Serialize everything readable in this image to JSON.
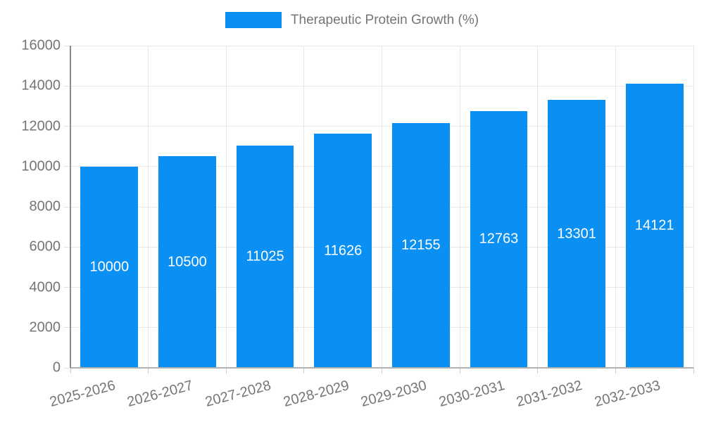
{
  "chart_data": {
    "type": "bar",
    "title": "Therapeutic Protein Growth (%)",
    "categories": [
      "2025-2026",
      "2026-2027",
      "2027-2028",
      "2028-2029",
      "2029-2030",
      "2030-2031",
      "2031-2032",
      "2032-2033"
    ],
    "values": [
      10000,
      10500,
      11025,
      11626,
      12155,
      12763,
      13301,
      14121
    ],
    "data_labels": [
      "10000",
      "10500",
      "11025",
      "11626",
      "12155",
      "12763",
      "13301",
      "14121"
    ],
    "y_ticks": [
      0,
      2000,
      4000,
      6000,
      8000,
      10000,
      12000,
      14000,
      16000
    ],
    "y_tick_labels": [
      "0",
      "2000",
      "4000",
      "6000",
      "8000",
      "10000",
      "12000",
      "14000",
      "16000"
    ],
    "xlabel": "",
    "ylabel": "",
    "ylim": [
      0,
      16000
    ],
    "grid": true,
    "legend_position": "top-center",
    "legend_entries": [
      "Therapeutic Protein Growth (%)"
    ],
    "colors": {
      "bar": "#0a8ff2",
      "bar_value_label": "#ffffff",
      "axis_text": "#757575",
      "gridline": "#e6e6e6",
      "y_axis_line": "#8a8a8a",
      "x_axis_line": "#b0b0b0",
      "background": "#ffffff"
    }
  }
}
